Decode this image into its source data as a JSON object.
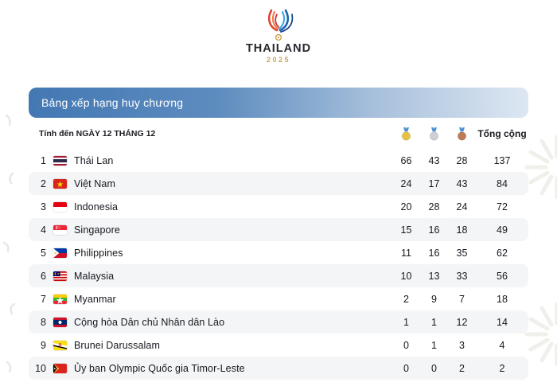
{
  "logo": {
    "title": "THAILAND",
    "year": "2025"
  },
  "banner": {
    "title": "Bảng xếp hạng huy chương"
  },
  "table": {
    "updated_label": "Tính đến NGÀY 12 THÁNG 12",
    "total_label": "Tổng cộng",
    "medal_columns": [
      {
        "name": "gold-medal-icon",
        "color": "#e7c140"
      },
      {
        "name": "silver-medal-icon",
        "color": "#cdd0d4"
      },
      {
        "name": "bronze-medal-icon",
        "color": "#bd7c53"
      }
    ],
    "rows": [
      {
        "rank": "1",
        "flag": "th",
        "country": "Thái Lan",
        "gold": "66",
        "silver": "43",
        "bronze": "28",
        "total": "137"
      },
      {
        "rank": "2",
        "flag": "vn",
        "country": "Việt Nam",
        "gold": "24",
        "silver": "17",
        "bronze": "43",
        "total": "84"
      },
      {
        "rank": "3",
        "flag": "id",
        "country": "Indonesia",
        "gold": "20",
        "silver": "28",
        "bronze": "24",
        "total": "72"
      },
      {
        "rank": "4",
        "flag": "sg",
        "country": "Singapore",
        "gold": "15",
        "silver": "16",
        "bronze": "18",
        "total": "49"
      },
      {
        "rank": "5",
        "flag": "ph",
        "country": "Philippines",
        "gold": "11",
        "silver": "16",
        "bronze": "35",
        "total": "62"
      },
      {
        "rank": "6",
        "flag": "my",
        "country": "Malaysia",
        "gold": "10",
        "silver": "13",
        "bronze": "33",
        "total": "56"
      },
      {
        "rank": "7",
        "flag": "mm",
        "country": "Myanmar",
        "gold": "2",
        "silver": "9",
        "bronze": "7",
        "total": "18"
      },
      {
        "rank": "8",
        "flag": "la",
        "country": "Cộng hòa Dân chủ Nhân dân Lào",
        "gold": "1",
        "silver": "1",
        "bronze": "12",
        "total": "14"
      },
      {
        "rank": "9",
        "flag": "bn",
        "country": "Brunei Darussalam",
        "gold": "0",
        "silver": "1",
        "bronze": "3",
        "total": "4"
      },
      {
        "rank": "10",
        "flag": "tl",
        "country": "Ủy ban Olympic Quốc gia Timor-Leste",
        "gold": "0",
        "silver": "0",
        "bronze": "2",
        "total": "2"
      }
    ]
  },
  "colors": {
    "banner_gradient_start": "#4478b3",
    "banner_gradient_end": "#dde7f2",
    "alt_row_background": "#f4f5f7",
    "ribbon": "#4a8fd3",
    "logo_year_gold": "#c8a65a"
  }
}
